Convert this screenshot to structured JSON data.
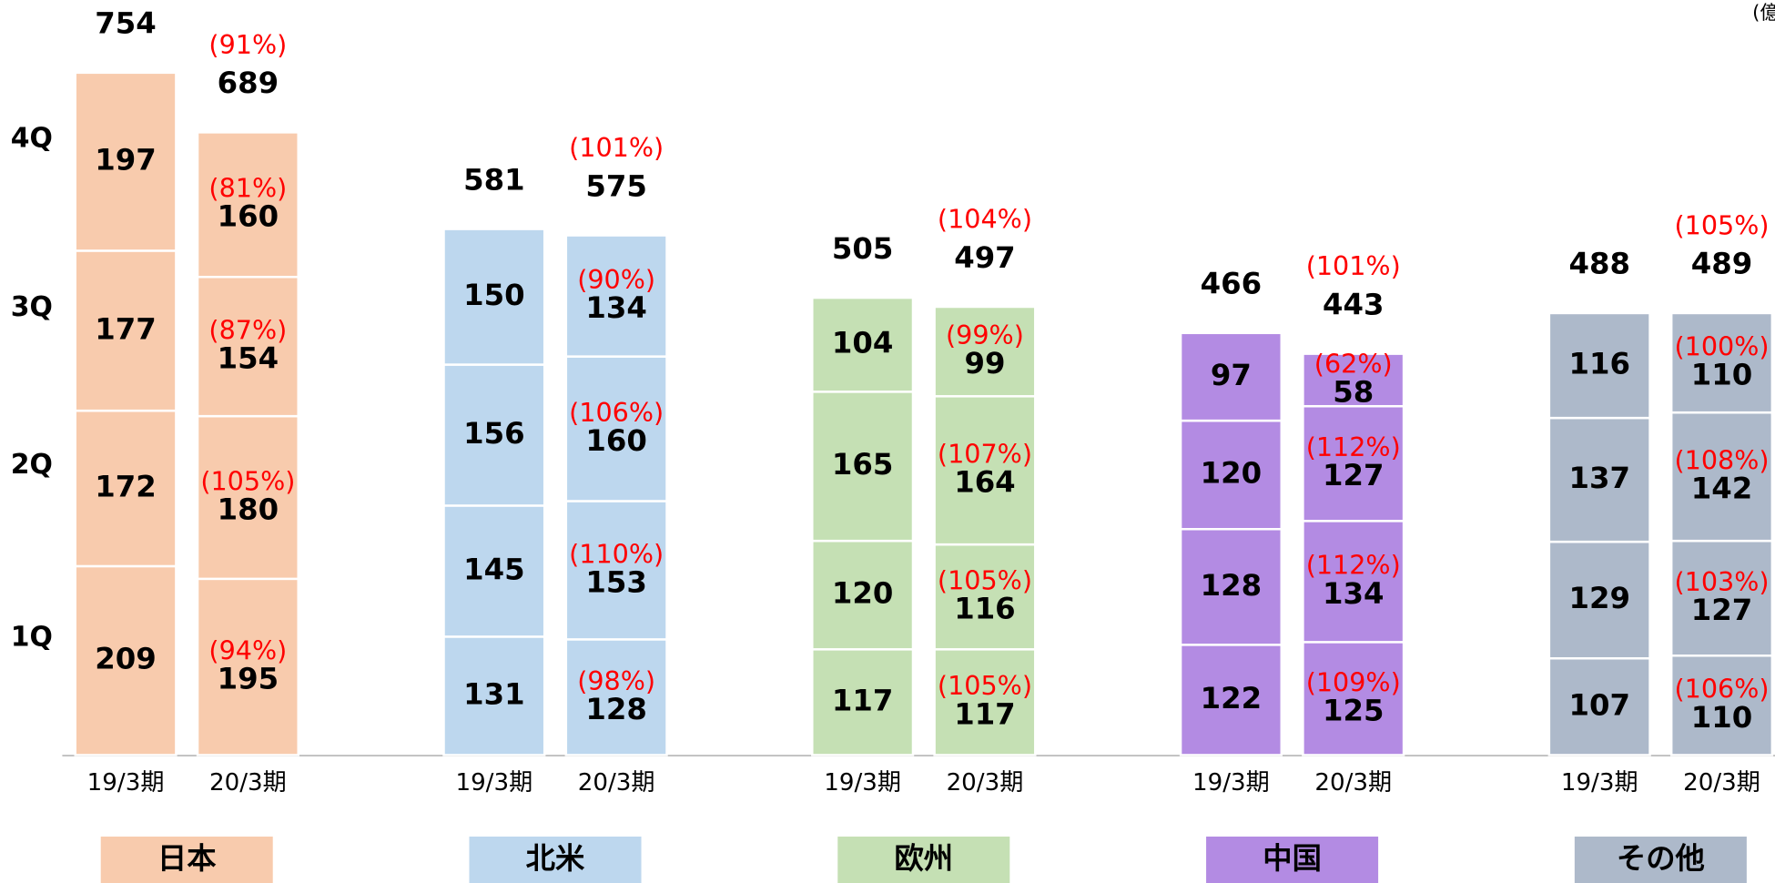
{
  "chart_data": {
    "type": "stacked_bar",
    "unit": "(億円)",
    "quarters": [
      "1Q",
      "2Q",
      "3Q",
      "4Q"
    ],
    "groups": [
      {
        "name": "日本",
        "color": "#f8cbad",
        "bars": [
          {
            "category": "19/3期",
            "values": [
              209,
              172,
              177,
              197
            ],
            "total": 754
          },
          {
            "category": "20/3期",
            "values": [
              195,
              180,
              154,
              160
            ],
            "ratios": [
              "(94%)",
              "(105%)",
              "(87%)",
              "(81%)"
            ],
            "total": 689,
            "total_ratio": "(91%)"
          }
        ]
      },
      {
        "name": "北米",
        "color": "#bdd7ee",
        "bars": [
          {
            "category": "19/3期",
            "values": [
              131,
              145,
              156,
              150
            ],
            "total": 581
          },
          {
            "category": "20/3期",
            "values": [
              128,
              153,
              160,
              134
            ],
            "ratios": [
              "(98%)",
              "(110%)",
              "(106%)",
              "(90%)"
            ],
            "total": 575,
            "total_ratio": "(101%)"
          }
        ]
      },
      {
        "name": "欧州",
        "color": "#c5e0b4",
        "bars": [
          {
            "category": "19/3期",
            "values": [
              117,
              120,
              165,
              104
            ],
            "total": 505
          },
          {
            "category": "20/3期",
            "values": [
              117,
              116,
              164,
              99
            ],
            "ratios": [
              "(105%)",
              "(105%)",
              "(107%)",
              "(99%)"
            ],
            "total": 497,
            "total_ratio": "(104%)"
          }
        ]
      },
      {
        "name": "中国",
        "color": "#b38be3",
        "bars": [
          {
            "category": "19/3期",
            "values": [
              122,
              128,
              120,
              97
            ],
            "total": 466
          },
          {
            "category": "20/3期",
            "values": [
              125,
              134,
              127,
              58
            ],
            "ratios": [
              "(109%)",
              "(112%)",
              "(112%)",
              "(62%)"
            ],
            "total": 443,
            "total_ratio": "(101%)"
          }
        ]
      },
      {
        "name": "その他",
        "color": "#adb9ca",
        "bars": [
          {
            "category": "19/3期",
            "values": [
              107,
              129,
              137,
              116
            ],
            "total": 488
          },
          {
            "category": "20/3期",
            "values": [
              110,
              127,
              142,
              110
            ],
            "ratios": [
              "(106%)",
              "(103%)",
              "(108%)",
              "(100%)"
            ],
            "total": 489,
            "total_ratio": "(105%)"
          }
        ]
      }
    ]
  }
}
